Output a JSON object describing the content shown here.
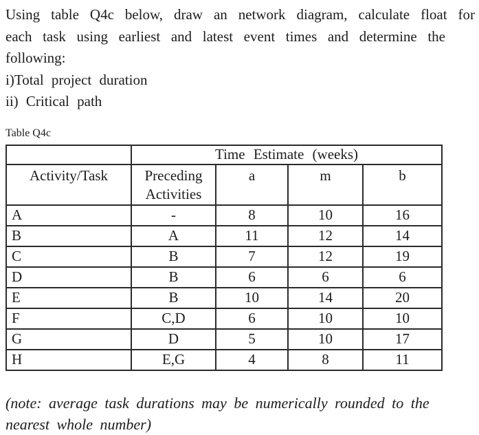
{
  "question": {
    "lines": [
      "Using table Q4c below, draw an network diagram, calculate float for",
      "each task using earliest and latest event times and determine the",
      "following:",
      "i)Total project duration",
      "ii) Critical path"
    ]
  },
  "table": {
    "caption": "Table Q4c",
    "group_header": "Time Estimate (weeks)",
    "columns": {
      "task": "Activity/Task",
      "preceding": "Preceding Activities",
      "a": "a",
      "m": "m",
      "b": "b"
    },
    "rows": [
      {
        "task": "A",
        "preceding": "-",
        "a": "8",
        "m": "10",
        "b": "16"
      },
      {
        "task": "B",
        "preceding": "A",
        "a": "11",
        "m": "12",
        "b": "14"
      },
      {
        "task": "C",
        "preceding": "B",
        "a": "7",
        "m": "12",
        "b": "19"
      },
      {
        "task": "D",
        "preceding": "B",
        "a": "6",
        "m": "6",
        "b": "6"
      },
      {
        "task": "E",
        "preceding": "B",
        "a": "10",
        "m": "14",
        "b": "20"
      },
      {
        "task": "F",
        "preceding": "C,D",
        "a": "6",
        "m": "10",
        "b": "10"
      },
      {
        "task": "G",
        "preceding": "D",
        "a": "5",
        "m": "10",
        "b": "17"
      },
      {
        "task": "H",
        "preceding": "E,G",
        "a": "4",
        "m": "8",
        "b": "11"
      }
    ]
  },
  "note": {
    "lines": [
      "(note: average task durations may be numerically rounded to the",
      "nearest whole number)"
    ]
  }
}
